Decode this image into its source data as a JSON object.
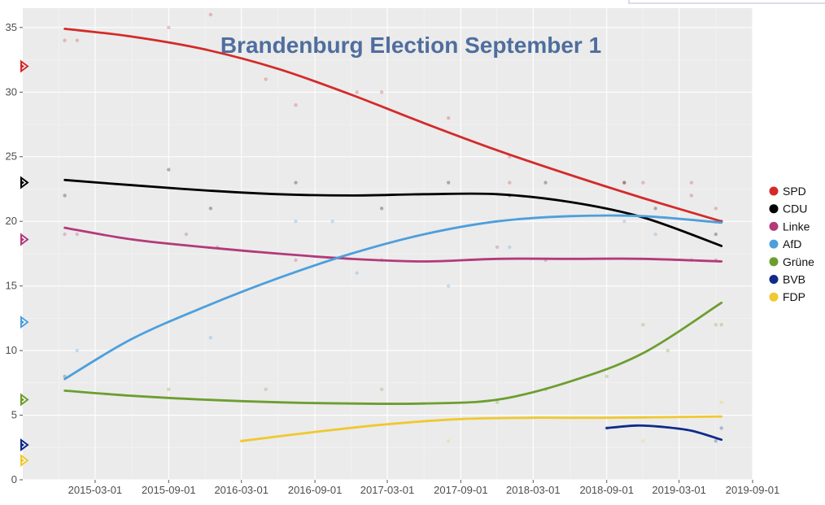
{
  "chart_data": {
    "type": "line",
    "title": "Brandenburg Election September 1",
    "title_color": "#4f6e9e",
    "xlabel": "",
    "ylabel": "",
    "x_ticks": [
      "2015-03-01",
      "2015-09-01",
      "2016-03-01",
      "2016-09-01",
      "2017-03-01",
      "2017-09-01",
      "2018-03-01",
      "2018-09-01",
      "2019-03-01",
      "2019-09-01"
    ],
    "xlim": [
      "2014-09-01",
      "2019-09-01"
    ],
    "y_ticks": [
      0,
      5,
      10,
      15,
      20,
      25,
      30,
      35
    ],
    "ylim": [
      0,
      36.5
    ],
    "grid": true,
    "panel_background": "#ebebeb",
    "legend_position": "right",
    "series": [
      {
        "name": "SPD",
        "color": "#d42a2a",
        "last_result": 32,
        "trend": [
          [
            "2014-12-15",
            34.9
          ],
          [
            "2015-06-01",
            34.3
          ],
          [
            "2015-12-01",
            33.3
          ],
          [
            "2016-06-01",
            31.8
          ],
          [
            "2016-12-01",
            29.8
          ],
          [
            "2017-06-01",
            27.6
          ],
          [
            "2017-12-01",
            25.5
          ],
          [
            "2018-06-01",
            23.6
          ],
          [
            "2018-12-01",
            21.8
          ],
          [
            "2019-06-15",
            20.0
          ]
        ],
        "points": [
          [
            "2014-12-15",
            34
          ],
          [
            "2015-01-15",
            34
          ],
          [
            "2015-09-01",
            35
          ],
          [
            "2015-12-15",
            36
          ],
          [
            "2016-05-01",
            31
          ],
          [
            "2016-07-15",
            29
          ],
          [
            "2016-12-15",
            30
          ],
          [
            "2017-02-15",
            30
          ],
          [
            "2017-08-01",
            28
          ],
          [
            "2018-01-01",
            25
          ],
          [
            "2018-01-01",
            23
          ],
          [
            "2018-10-15",
            23
          ],
          [
            "2018-12-01",
            23
          ],
          [
            "2019-04-01",
            22
          ],
          [
            "2019-06-01",
            21
          ],
          [
            "2019-04-01",
            23
          ]
        ]
      },
      {
        "name": "CDU",
        "color": "#000000",
        "last_result": 23,
        "trend": [
          [
            "2014-12-15",
            23.2
          ],
          [
            "2015-06-01",
            22.8
          ],
          [
            "2015-12-01",
            22.4
          ],
          [
            "2016-06-01",
            22.1
          ],
          [
            "2016-12-01",
            22.0
          ],
          [
            "2017-06-01",
            22.1
          ],
          [
            "2017-12-01",
            22.1
          ],
          [
            "2018-06-01",
            21.5
          ],
          [
            "2018-12-01",
            20.3
          ],
          [
            "2019-06-15",
            18.1
          ]
        ],
        "points": [
          [
            "2014-12-15",
            22
          ],
          [
            "2015-09-01",
            24
          ],
          [
            "2015-12-15",
            21
          ],
          [
            "2016-07-15",
            23
          ],
          [
            "2017-02-15",
            21
          ],
          [
            "2017-08-01",
            23
          ],
          [
            "2018-01-01",
            22
          ],
          [
            "2018-04-01",
            23
          ],
          [
            "2018-10-15",
            23
          ],
          [
            "2019-01-01",
            21
          ],
          [
            "2019-06-01",
            19
          ],
          [
            "2019-06-15",
            20
          ]
        ]
      },
      {
        "name": "Linke",
        "color": "#b23a7a",
        "last_result": 18.6,
        "trend": [
          [
            "2014-12-15",
            19.5
          ],
          [
            "2015-06-01",
            18.6
          ],
          [
            "2015-12-01",
            18.0
          ],
          [
            "2016-06-01",
            17.5
          ],
          [
            "2016-12-01",
            17.1
          ],
          [
            "2017-06-01",
            16.9
          ],
          [
            "2017-12-01",
            17.1
          ],
          [
            "2018-06-01",
            17.1
          ],
          [
            "2018-12-01",
            17.1
          ],
          [
            "2019-06-15",
            16.9
          ]
        ],
        "points": [
          [
            "2014-12-15",
            19
          ],
          [
            "2015-01-15",
            19
          ],
          [
            "2015-10-15",
            19
          ],
          [
            "2016-01-01",
            18
          ],
          [
            "2016-07-15",
            17
          ],
          [
            "2017-02-15",
            17
          ],
          [
            "2017-12-01",
            18
          ],
          [
            "2018-04-01",
            17
          ],
          [
            "2019-04-01",
            17
          ],
          [
            "2019-06-01",
            17
          ]
        ]
      },
      {
        "name": "AfD",
        "color": "#4d9fdc",
        "last_result": 12.2,
        "trend": [
          [
            "2014-12-15",
            7.8
          ],
          [
            "2015-06-01",
            10.9
          ],
          [
            "2015-12-01",
            13.4
          ],
          [
            "2016-06-01",
            15.6
          ],
          [
            "2016-12-01",
            17.5
          ],
          [
            "2017-06-01",
            19.0
          ],
          [
            "2017-12-01",
            20.0
          ],
          [
            "2018-06-01",
            20.4
          ],
          [
            "2018-12-01",
            20.4
          ],
          [
            "2019-06-15",
            19.9
          ]
        ],
        "points": [
          [
            "2014-12-15",
            8
          ],
          [
            "2015-01-15",
            10
          ],
          [
            "2015-12-15",
            11
          ],
          [
            "2016-07-15",
            20
          ],
          [
            "2016-10-15",
            20
          ],
          [
            "2016-12-15",
            16
          ],
          [
            "2017-08-01",
            15
          ],
          [
            "2018-01-01",
            18
          ],
          [
            "2018-10-15",
            20
          ],
          [
            "2019-01-01",
            19
          ],
          [
            "2019-06-01",
            20
          ]
        ]
      },
      {
        "name": "Grüne",
        "color": "#6c9e2f",
        "last_result": 6.2,
        "trend": [
          [
            "2014-12-15",
            6.9
          ],
          [
            "2015-06-01",
            6.5
          ],
          [
            "2015-12-01",
            6.2
          ],
          [
            "2016-06-01",
            6.0
          ],
          [
            "2016-12-01",
            5.9
          ],
          [
            "2017-06-01",
            5.9
          ],
          [
            "2017-12-01",
            6.2
          ],
          [
            "2018-06-01",
            7.6
          ],
          [
            "2018-12-01",
            9.8
          ],
          [
            "2019-06-15",
            13.7
          ]
        ],
        "points": [
          [
            "2014-12-15",
            8
          ],
          [
            "2015-09-01",
            7
          ],
          [
            "2016-05-01",
            7
          ],
          [
            "2017-02-15",
            7
          ],
          [
            "2017-12-01",
            6
          ],
          [
            "2018-04-01",
            7
          ],
          [
            "2018-09-01",
            8
          ],
          [
            "2018-12-01",
            12
          ],
          [
            "2019-02-01",
            10
          ],
          [
            "2019-06-01",
            12
          ],
          [
            "2019-06-15",
            12
          ]
        ]
      },
      {
        "name": "BVB",
        "color": "#0f2a8a",
        "last_result": 2.7,
        "trend": [
          [
            "2018-09-01",
            4.0
          ],
          [
            "2018-11-15",
            4.2
          ],
          [
            "2019-01-15",
            4.1
          ],
          [
            "2019-04-01",
            3.8
          ],
          [
            "2019-06-15",
            3.1
          ]
        ],
        "points": [
          [
            "2018-09-01",
            4
          ],
          [
            "2019-06-01",
            3
          ],
          [
            "2019-06-15",
            4
          ]
        ]
      },
      {
        "name": "FDP",
        "color": "#f0c830",
        "last_result": 1.5,
        "trend": [
          [
            "2016-03-01",
            3.0
          ],
          [
            "2016-09-01",
            3.7
          ],
          [
            "2017-03-01",
            4.3
          ],
          [
            "2017-09-01",
            4.7
          ],
          [
            "2018-03-01",
            4.8
          ],
          [
            "2018-09-01",
            4.8
          ],
          [
            "2019-06-15",
            4.9
          ]
        ],
        "points": [
          [
            "2016-03-01",
            3
          ],
          [
            "2017-08-01",
            3
          ],
          [
            "2018-12-01",
            3
          ],
          [
            "2019-06-15",
            6
          ]
        ]
      }
    ]
  }
}
